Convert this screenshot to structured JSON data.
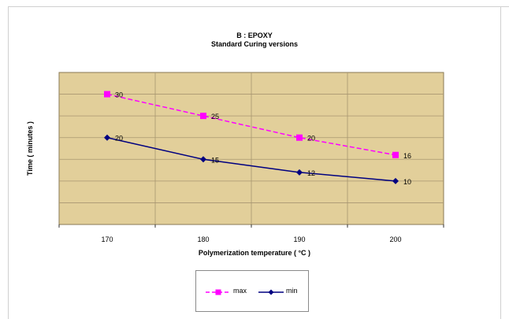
{
  "chart_data": {
    "type": "line",
    "title": "B : EPOXY",
    "subtitle": "Standard Curing versions",
    "xlabel": "Polymerization temperature ( °C )",
    "ylabel": "Time ( minutes )",
    "x": [
      170,
      180,
      190,
      200
    ],
    "xlim": [
      165,
      205
    ],
    "ylim": [
      0,
      35
    ],
    "grid": true,
    "legend_placement": "bottom",
    "series": [
      {
        "name": "max",
        "values": [
          30,
          25,
          20,
          16
        ],
        "color": "#ff00ff",
        "dash": true,
        "marker": "square"
      },
      {
        "name": "min",
        "values": [
          20,
          15,
          12,
          10
        ],
        "color": "#000080",
        "dash": false,
        "marker": "diamond"
      }
    ]
  },
  "colors": {
    "plot_bg": "#e2cf9a",
    "grid": "#a89670"
  }
}
